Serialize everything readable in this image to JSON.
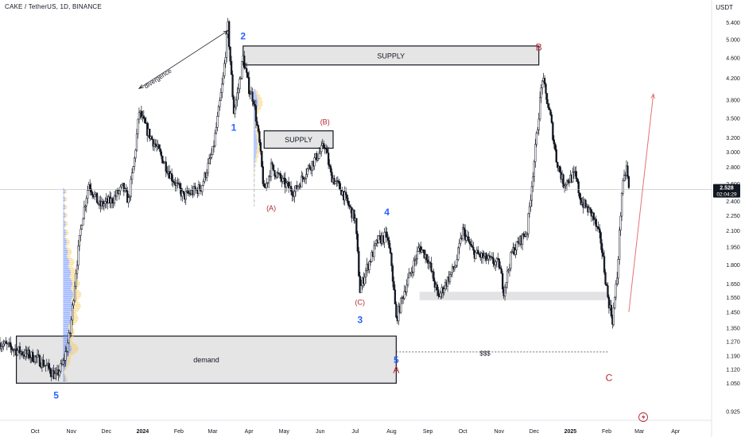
{
  "header": {
    "symbol_line": "CAKE / TetherUS, 1D, BINANCE",
    "currency": "USDT"
  },
  "price_badge": {
    "price": "2.528",
    "countdown": "02:04:29"
  },
  "colors": {
    "up": "#131722",
    "down": "#131722",
    "zone_fill": "#e0e0e2",
    "zone_border": "#131722",
    "wave_blue": "#2962ff",
    "wave_red": "#b22833",
    "vp_blue": "#2962ff",
    "vp_yellow": "#f7c548",
    "arrow_red": "#e57373",
    "price_line": "#bdbdbd",
    "badge_bg": "#131722"
  },
  "chart_data": {
    "type": "candlestick",
    "title": "CAKE / TetherUS, 1D, BINANCE",
    "ylabel": "USDT",
    "yscale": "log",
    "ylim": [
      0.9,
      5.6
    ],
    "y_ticks": [
      "5.400",
      "5.000",
      "4.600",
      "4.200",
      "3.800",
      "3.500",
      "3.200",
      "3.000",
      "2.800",
      "2.600",
      "2.400",
      "2.250",
      "2.100",
      "1.950",
      "1.800",
      "1.650",
      "1.550",
      "1.450",
      "1.350",
      "1.270",
      "1.190",
      "1.120",
      "1.050",
      "0.925"
    ],
    "x_ticks": [
      "Oct",
      "Nov",
      "Dec",
      "2024",
      "Feb",
      "Mar",
      "Apr",
      "May",
      "Jun",
      "Jul",
      "Aug",
      "Sep",
      "Oct",
      "Nov",
      "Dec",
      "2025",
      "Feb",
      "Mar",
      "Apr"
    ],
    "last_price": 2.528,
    "path_points": [
      [
        "2023-09-01",
        1.26
      ],
      [
        "2023-09-15",
        1.22
      ],
      [
        "2023-10-01",
        1.18
      ],
      [
        "2023-10-10",
        1.14
      ],
      [
        "2023-10-19",
        1.08
      ],
      [
        "2023-10-25",
        1.15
      ],
      [
        "2023-10-31",
        1.32
      ],
      [
        "2023-11-05",
        1.75
      ],
      [
        "2023-11-10",
        2.2
      ],
      [
        "2023-11-16",
        2.6
      ],
      [
        "2023-11-25",
        2.35
      ],
      [
        "2023-12-05",
        2.4
      ],
      [
        "2023-12-15",
        2.55
      ],
      [
        "2023-12-20",
        2.4
      ],
      [
        "2023-12-25",
        2.9
      ],
      [
        "2023-12-29",
        3.6
      ],
      [
        "2024-01-05",
        3.3
      ],
      [
        "2024-01-15",
        3.0
      ],
      [
        "2024-01-25",
        2.7
      ],
      [
        "2024-02-05",
        2.45
      ],
      [
        "2024-02-20",
        2.55
      ],
      [
        "2024-03-01",
        3.0
      ],
      [
        "2024-03-06",
        3.6
      ],
      [
        "2024-03-10",
        4.2
      ],
      [
        "2024-03-14",
        5.3
      ],
      [
        "2024-03-19",
        3.6
      ],
      [
        "2024-03-23",
        4.0
      ],
      [
        "2024-03-27",
        4.6
      ],
      [
        "2024-04-01",
        4.0
      ],
      [
        "2024-04-05",
        3.8
      ],
      [
        "2024-04-10",
        3.1
      ],
      [
        "2024-04-14",
        2.5
      ],
      [
        "2024-04-20",
        2.8
      ],
      [
        "2024-05-01",
        2.6
      ],
      [
        "2024-05-10",
        2.5
      ],
      [
        "2024-05-20",
        2.75
      ],
      [
        "2024-06-01",
        3.0
      ],
      [
        "2024-06-05",
        3.1
      ],
      [
        "2024-06-10",
        2.7
      ],
      [
        "2024-06-20",
        2.5
      ],
      [
        "2024-07-01",
        2.2
      ],
      [
        "2024-07-05",
        1.6
      ],
      [
        "2024-07-10",
        1.75
      ],
      [
        "2024-07-20",
        2.0
      ],
      [
        "2024-07-28",
        2.05
      ],
      [
        "2024-08-01",
        1.8
      ],
      [
        "2024-08-05",
        1.4
      ],
      [
        "2024-08-12",
        1.6
      ],
      [
        "2024-08-25",
        1.95
      ],
      [
        "2024-09-01",
        1.85
      ],
      [
        "2024-09-10",
        1.55
      ],
      [
        "2024-09-25",
        1.8
      ],
      [
        "2024-10-01",
        2.1
      ],
      [
        "2024-10-10",
        1.9
      ],
      [
        "2024-10-20",
        1.85
      ],
      [
        "2024-11-01",
        1.8
      ],
      [
        "2024-11-05",
        1.6
      ],
      [
        "2024-11-12",
        1.9
      ],
      [
        "2024-11-25",
        2.1
      ],
      [
        "2024-12-03",
        3.2
      ],
      [
        "2024-12-08",
        4.2
      ],
      [
        "2024-12-15",
        3.5
      ],
      [
        "2024-12-20",
        2.9
      ],
      [
        "2024-12-26",
        2.6
      ],
      [
        "2025-01-05",
        2.7
      ],
      [
        "2025-01-10",
        2.4
      ],
      [
        "2025-01-20",
        2.25
      ],
      [
        "2025-01-27",
        2.0
      ],
      [
        "2025-02-02",
        1.55
      ],
      [
        "2025-02-06",
        1.4
      ],
      [
        "2025-02-10",
        1.7
      ],
      [
        "2025-02-14",
        2.5
      ],
      [
        "2025-02-18",
        2.8
      ],
      [
        "2025-02-20",
        2.53
      ]
    ],
    "zones": [
      {
        "label": "demand",
        "y_low": 1.05,
        "y_high": 1.3,
        "x_start": "2023-09-15",
        "x_end": "2024-08-05"
      },
      {
        "label": "SUPPLY",
        "y_low": 4.45,
        "y_high": 4.85,
        "x_start": "2024-03-27",
        "x_end": "2024-12-05"
      },
      {
        "label": "SUPPLY",
        "y_low": 3.05,
        "y_high": 3.3,
        "x_start": "2024-04-14",
        "x_end": "2024-06-12"
      },
      {
        "label": "",
        "y_low": 1.53,
        "y_high": 1.59,
        "x_start": "2024-08-25",
        "x_end": "2025-02-01"
      }
    ],
    "annotations": [
      {
        "text": "divergence",
        "x": "2024-01-15",
        "y": 4.15
      },
      {
        "text": "$$$",
        "x": "2024-10-20",
        "y": 1.19
      }
    ],
    "wave_labels": [
      {
        "text": "1",
        "x": "2024-03-19",
        "y": 3.3,
        "color": "blue"
      },
      {
        "text": "2",
        "x": "2024-03-27",
        "y": 5.0,
        "color": "blue"
      },
      {
        "text": "3",
        "x": "2024-07-05",
        "y": 1.38,
        "color": "blue"
      },
      {
        "text": "4",
        "x": "2024-07-28",
        "y": 2.25,
        "color": "blue"
      },
      {
        "text": "5",
        "x": "2024-08-05",
        "y": 1.15,
        "color": "blue"
      },
      {
        "text": "5",
        "x": "2023-10-19",
        "y": 0.98,
        "color": "blue"
      },
      {
        "text": "(A)",
        "x": "2024-04-20",
        "y": 2.3,
        "color": "red"
      },
      {
        "text": "(B)",
        "x": "2024-06-05",
        "y": 3.4,
        "color": "red"
      },
      {
        "text": "(C)",
        "x": "2024-07-05",
        "y": 1.5,
        "color": "red"
      },
      {
        "text": "A",
        "x": "2024-08-05",
        "y": 1.1,
        "color": "red"
      },
      {
        "text": "B",
        "x": "2024-12-05",
        "y": 4.75,
        "color": "red"
      },
      {
        "text": "C",
        "x": "2025-02-03",
        "y": 1.06,
        "color": "red"
      }
    ],
    "projection": {
      "from": [
        "2025-02-20",
        1.45
      ],
      "to": [
        "2025-03-13",
        3.9
      ]
    },
    "divergence_line": {
      "from": [
        "2023-12-29",
        4.0
      ],
      "to": [
        "2024-03-14",
        5.2
      ]
    },
    "liquidity_line": {
      "from": [
        "2024-08-05",
        1.21
      ],
      "to": [
        "2025-02-03",
        1.21
      ]
    }
  }
}
